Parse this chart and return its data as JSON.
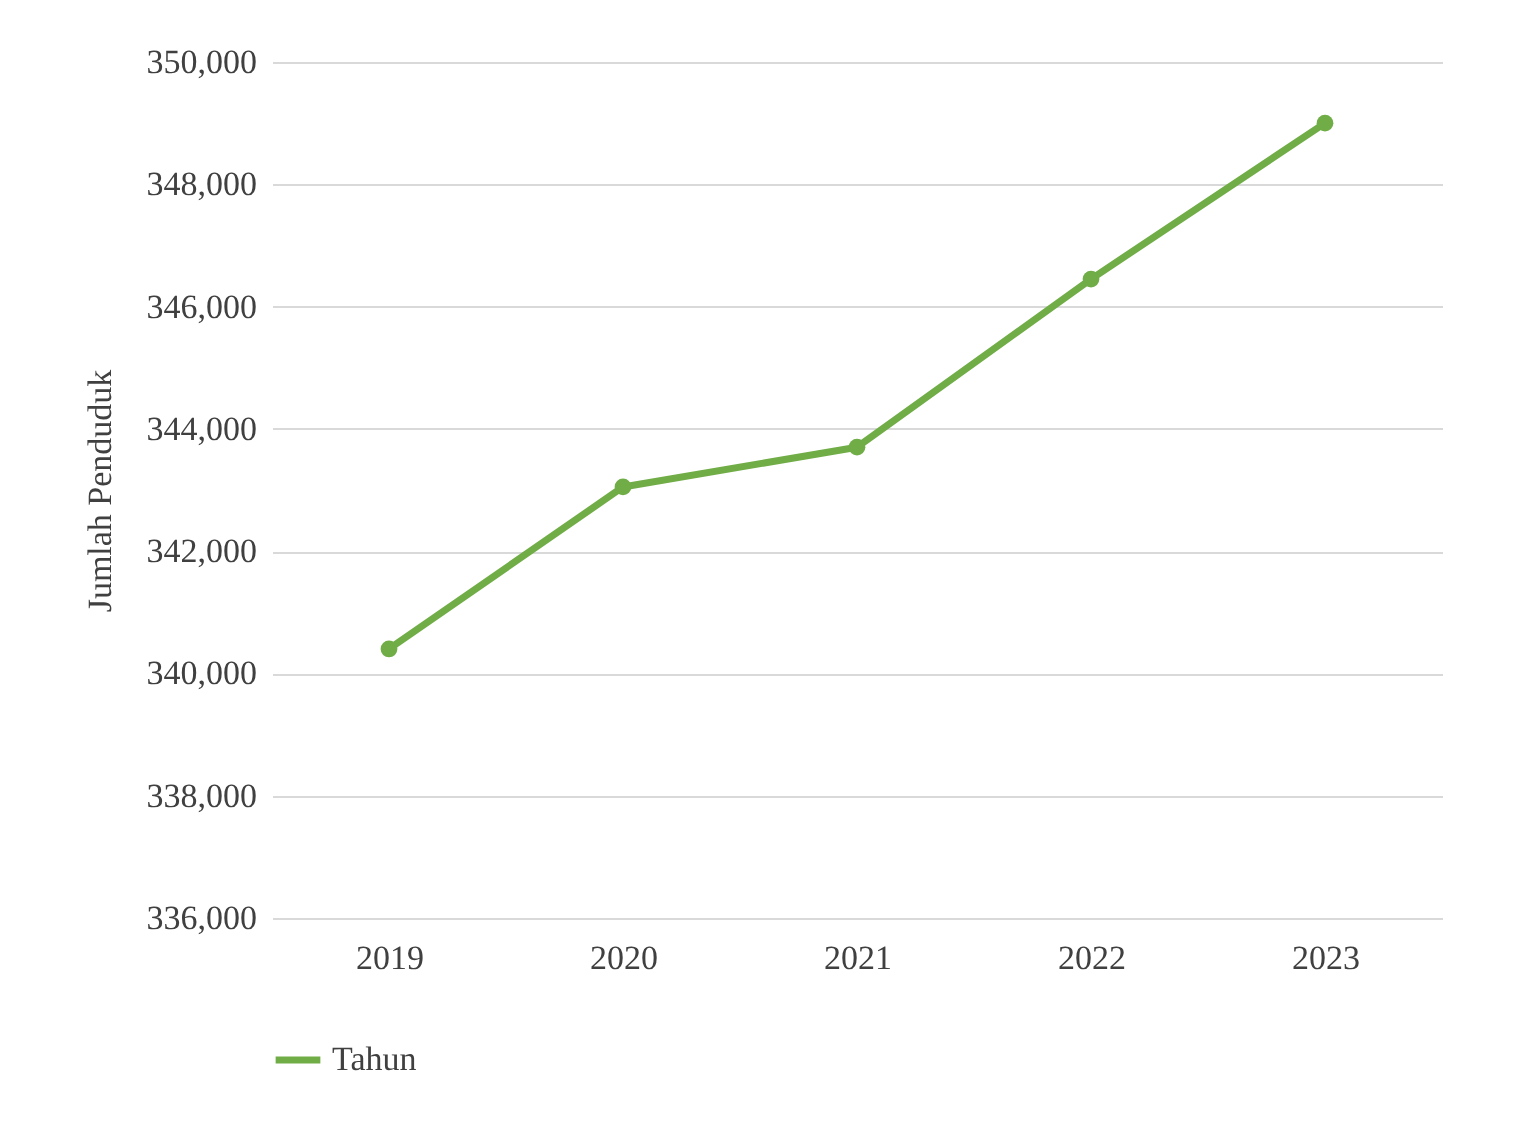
{
  "chart_data": {
    "type": "line",
    "ylabel": "Jumlah Penduduk",
    "categories": [
      "2019",
      "2020",
      "2021",
      "2022",
      "2023"
    ],
    "series": [
      {
        "name": "Tahun",
        "color": "#70ad47",
        "values": [
          340400,
          343050,
          343700,
          346450,
          349000
        ]
      }
    ],
    "ylim": [
      336000,
      350000
    ],
    "yticks": [
      {
        "value": 336000,
        "label": "336,000"
      },
      {
        "value": 338000,
        "label": "338,000"
      },
      {
        "value": 340000,
        "label": "340,000"
      },
      {
        "value": 342000,
        "label": "342,000"
      },
      {
        "value": 344000,
        "label": "344,000"
      },
      {
        "value": 346000,
        "label": "346,000"
      },
      {
        "value": 348000,
        "label": "348,000"
      },
      {
        "value": 350000,
        "label": "350,000"
      }
    ],
    "grid": "y",
    "legend": "bottom",
    "marker": "circle",
    "line_style": "solid"
  }
}
